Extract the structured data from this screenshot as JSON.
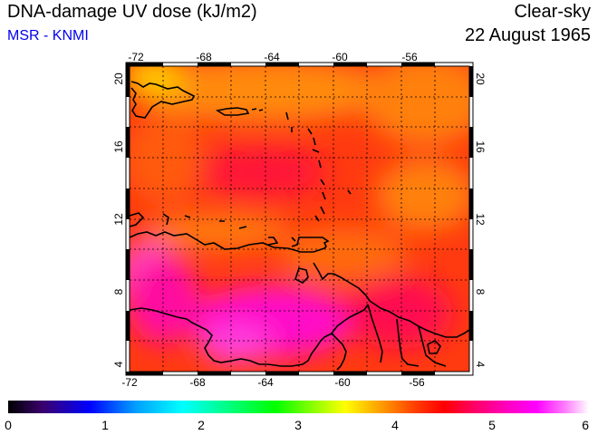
{
  "header": {
    "title": "DNA-damage UV dose (kJ/m2)",
    "subtitle": "MSR - KNMI",
    "sky_condition": "Clear-sky",
    "date": "22 August 1965"
  },
  "map": {
    "lon_ticks": [
      "-72",
      "-68",
      "-64",
      "-60",
      "-56"
    ],
    "lat_ticks": [
      "20",
      "16",
      "12",
      "8",
      "4"
    ],
    "lon_range": [
      -72,
      -52
    ],
    "lat_range": [
      3.5,
      20.5
    ]
  },
  "colorbar": {
    "ticks": [
      "0",
      "1",
      "2",
      "3",
      "4",
      "5",
      "6"
    ],
    "range": [
      0,
      6
    ],
    "colors": [
      "#000000",
      "#3a006e",
      "#0000ff",
      "#00a0ff",
      "#00ffff",
      "#00ff80",
      "#00ff00",
      "#80ff00",
      "#ffff00",
      "#ffa000",
      "#ff4000",
      "#ff0000",
      "#ff0060",
      "#ff00c0",
      "#ff00ff",
      "#ff80ff",
      "#ffffff"
    ]
  }
}
